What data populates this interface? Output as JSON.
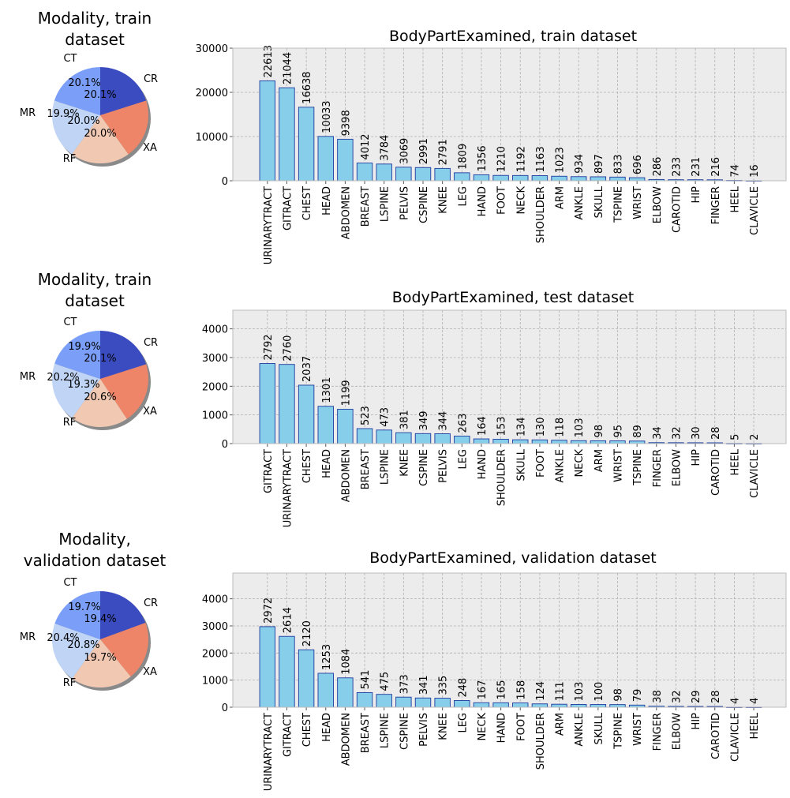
{
  "chart_data": [
    {
      "type": "pie",
      "title": "Modality, train dataset",
      "title_lines": [
        "Modality, train",
        "dataset"
      ],
      "labels": [
        "CR",
        "XA",
        "RF",
        "MR",
        "CT"
      ],
      "values": [
        20.1,
        20.0,
        20.0,
        19.9,
        20.1
      ],
      "value_labels": [
        "20.1%",
        "20.0%",
        "20.0%",
        "19.9%",
        "20.1%"
      ]
    },
    {
      "type": "bar",
      "title": "BodyPartExamined, train dataset",
      "categories": [
        "URINARYTRACT",
        "GITRACT",
        "CHEST",
        "HEAD",
        "ABDOMEN",
        "BREAST",
        "LSPINE",
        "PELVIS",
        "CSPINE",
        "KNEE",
        "LEG",
        "HAND",
        "FOOT",
        "NECK",
        "SHOULDER",
        "ARM",
        "ANKLE",
        "SKULL",
        "TSPINE",
        "WRIST",
        "ELBOW",
        "CAROTID",
        "HIP",
        "FINGER",
        "HEEL",
        "CLAVICLE"
      ],
      "values": [
        22613,
        21044,
        16638,
        10033,
        9398,
        4012,
        3784,
        3069,
        2991,
        2791,
        1809,
        1356,
        1210,
        1192,
        1163,
        1023,
        934,
        897,
        833,
        696,
        286,
        233,
        231,
        216,
        74,
        16
      ],
      "ylim": [
        0,
        30000
      ],
      "yticks": [
        0,
        10000,
        20000,
        30000
      ],
      "xlabel": "",
      "ylabel": ""
    },
    {
      "type": "pie",
      "title": "Modality, train dataset",
      "title_lines": [
        "Modality, train",
        "dataset"
      ],
      "labels": [
        "CR",
        "XA",
        "RF",
        "MR",
        "CT"
      ],
      "values": [
        20.1,
        20.6,
        19.3,
        20.2,
        19.9
      ],
      "value_labels": [
        "20.1%",
        "20.6%",
        "19.3%",
        "20.2%",
        "19.9%"
      ]
    },
    {
      "type": "bar",
      "title": "BodyPartExamined, test dataset",
      "categories": [
        "GITRACT",
        "URINARYTRACT",
        "CHEST",
        "HEAD",
        "ABDOMEN",
        "BREAST",
        "LSPINE",
        "KNEE",
        "CSPINE",
        "PELVIS",
        "LEG",
        "HAND",
        "SHOULDER",
        "SKULL",
        "FOOT",
        "ANKLE",
        "NECK",
        "ARM",
        "WRIST",
        "TSPINE",
        "FINGER",
        "ELBOW",
        "HIP",
        "CAROTID",
        "HEEL",
        "CLAVICLE"
      ],
      "values": [
        2792,
        2760,
        2037,
        1301,
        1199,
        523,
        473,
        381,
        349,
        344,
        263,
        164,
        153,
        134,
        130,
        118,
        103,
        98,
        95,
        89,
        34,
        32,
        30,
        28,
        5,
        2
      ],
      "ylim": [
        0,
        4650
      ],
      "yticks": [
        0,
        1000,
        2000,
        3000,
        4000
      ],
      "xlabel": "",
      "ylabel": ""
    },
    {
      "type": "pie",
      "title": "Modality, validation dataset",
      "title_lines": [
        "Modality,",
        "validation dataset"
      ],
      "labels": [
        "CR",
        "XA",
        "RF",
        "MR",
        "CT"
      ],
      "values": [
        19.4,
        19.7,
        20.8,
        20.4,
        19.7
      ],
      "value_labels": [
        "19.4%",
        "19.7%",
        "20.8%",
        "20.4%",
        "19.7%"
      ]
    },
    {
      "type": "bar",
      "title": "BodyPartExamined, validation dataset",
      "categories": [
        "URINARYTRACT",
        "GITRACT",
        "CHEST",
        "HEAD",
        "ABDOMEN",
        "BREAST",
        "LSPINE",
        "CSPINE",
        "PELVIS",
        "KNEE",
        "LEG",
        "NECK",
        "HAND",
        "FOOT",
        "SHOULDER",
        "ARM",
        "ANKLE",
        "SKULL",
        "TSPINE",
        "WRIST",
        "FINGER",
        "ELBOW",
        "HIP",
        "CAROTID",
        "CLAVICLE",
        "HEEL"
      ],
      "values": [
        2972,
        2614,
        2120,
        1253,
        1084,
        541,
        475,
        373,
        341,
        335,
        248,
        167,
        165,
        158,
        124,
        111,
        103,
        100,
        98,
        79,
        38,
        32,
        29,
        28,
        4,
        4
      ],
      "ylim": [
        0,
        4950
      ],
      "yticks": [
        0,
        1000,
        2000,
        3000,
        4000
      ],
      "xlabel": "",
      "ylabel": ""
    }
  ],
  "colors": {
    "pie": [
      "#3b4cc0",
      "#ee8468",
      "#f1c9b3",
      "#c0d4f5",
      "#7b9ff9"
    ],
    "bar_fill": "#87ceeb",
    "bar_edge": "#1f3b9e",
    "axes_bg": "#ececec",
    "grid": "#b0b0b0"
  }
}
